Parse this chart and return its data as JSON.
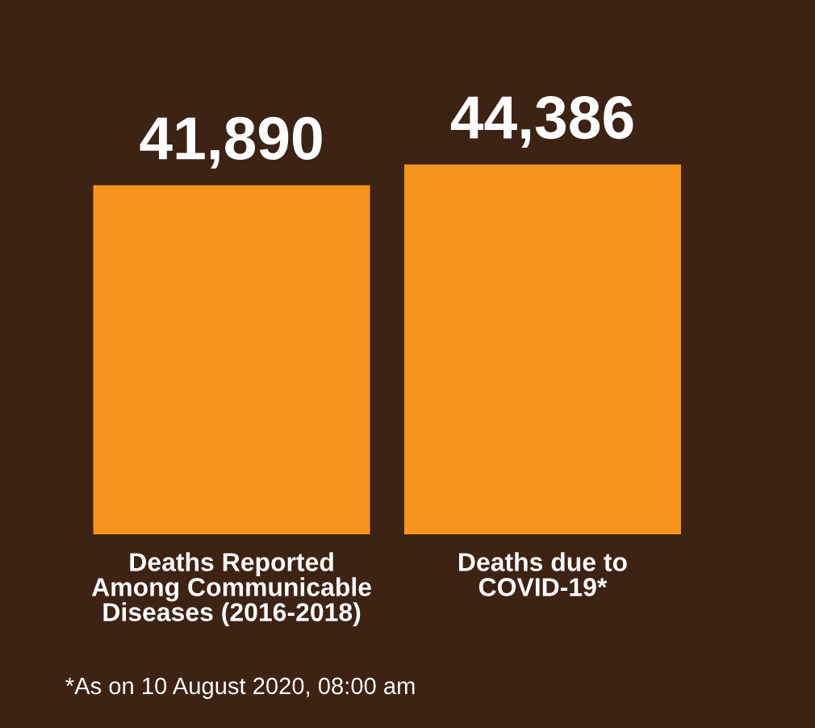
{
  "chart_data": {
    "type": "bar",
    "categories": [
      "Deaths Reported\nAmong Communicable\nDiseases (2016-2018)",
      "Deaths due to\nCOVID-19*"
    ],
    "values": [
      41890,
      44386
    ],
    "value_labels": [
      "41,890",
      "44,386"
    ],
    "color": "#f7941d",
    "annotations": [
      "*As on 10 August 2020, 08:00 am"
    ],
    "grid": false,
    "legend": false
  }
}
